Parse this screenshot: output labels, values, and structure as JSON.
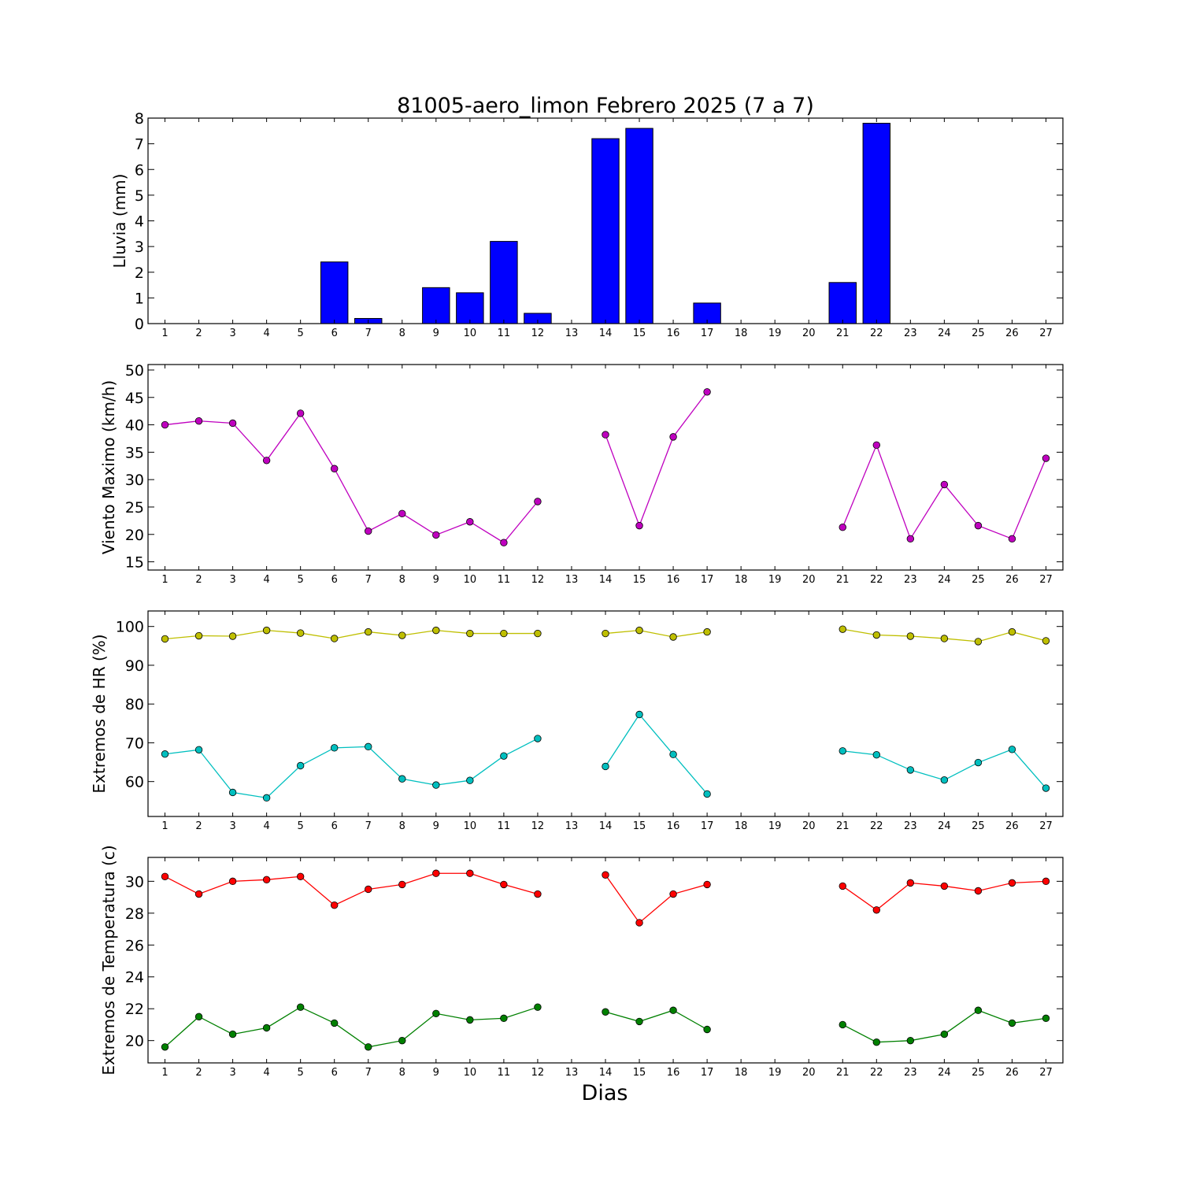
{
  "figure": {
    "title": "81005-aero_limon Febrero 2025  (7 a 7)",
    "xlabel": "Dias"
  },
  "colors": {
    "rain_bar": "#0000ff",
    "wind": "#bf00bf",
    "hr_max": "#bfbf00",
    "hr_min": "#00bfbf",
    "temp_max": "#ff0000",
    "temp_min": "#008000"
  },
  "chart_data": [
    {
      "type": "bar",
      "ylabel": "Lluvia (mm)",
      "xlabel": "",
      "x": [
        1,
        2,
        3,
        4,
        5,
        6,
        7,
        8,
        9,
        10,
        11,
        12,
        13,
        14,
        15,
        16,
        17,
        18,
        19,
        20,
        21,
        22,
        23,
        24,
        25,
        26,
        27
      ],
      "xlim": [
        0.5,
        27.5
      ],
      "ylim": [
        0,
        8
      ],
      "yticks": [
        0,
        1,
        2,
        3,
        4,
        5,
        6,
        7,
        8
      ],
      "series": [
        {
          "color_key": "rain_bar",
          "values": [
            0,
            0,
            0,
            0,
            0,
            2.4,
            0.2,
            0,
            1.4,
            1.2,
            3.2,
            0.4,
            0,
            7.2,
            7.6,
            0,
            0.8,
            0,
            0,
            0,
            1.6,
            7.8,
            0,
            0,
            0,
            0,
            0
          ]
        }
      ]
    },
    {
      "type": "line",
      "ylabel": "Viento Maximo (km/h)",
      "xlabel": "",
      "x": [
        1,
        2,
        3,
        4,
        5,
        6,
        7,
        8,
        9,
        10,
        11,
        12,
        13,
        14,
        15,
        16,
        17,
        18,
        19,
        20,
        21,
        22,
        23,
        24,
        25,
        26,
        27
      ],
      "xlim": [
        0.5,
        27.5
      ],
      "ylim": [
        13.5,
        51
      ],
      "yticks": [
        15,
        20,
        25,
        30,
        35,
        40,
        45,
        50
      ],
      "series": [
        {
          "color_key": "wind",
          "values": [
            40,
            40.7,
            40.3,
            33.5,
            42.1,
            32,
            20.6,
            23.8,
            19.9,
            22.3,
            18.5,
            26,
            null,
            38.2,
            21.6,
            37.8,
            46,
            null,
            null,
            null,
            21.3,
            36.3,
            19.2,
            29.1,
            21.6,
            19.2,
            33.9
          ]
        }
      ]
    },
    {
      "type": "line",
      "ylabel": "Extremos de HR (%)",
      "xlabel": "",
      "x": [
        1,
        2,
        3,
        4,
        5,
        6,
        7,
        8,
        9,
        10,
        11,
        12,
        13,
        14,
        15,
        16,
        17,
        18,
        19,
        20,
        21,
        22,
        23,
        24,
        25,
        26,
        27
      ],
      "xlim": [
        0.5,
        27.5
      ],
      "ylim": [
        51,
        104
      ],
      "yticks": [
        60,
        70,
        80,
        90,
        100
      ],
      "series": [
        {
          "color_key": "hr_max",
          "values": [
            96.8,
            97.6,
            97.5,
            99,
            98.3,
            96.9,
            98.6,
            97.7,
            99,
            98.2,
            98.2,
            98.2,
            null,
            98.2,
            99,
            97.3,
            98.6,
            null,
            null,
            null,
            99.3,
            97.8,
            97.5,
            96.9,
            96.1,
            98.6,
            96.3
          ]
        },
        {
          "color_key": "hr_min",
          "values": [
            67.1,
            68.2,
            57.2,
            55.8,
            64.1,
            68.7,
            69,
            60.7,
            59.1,
            60.3,
            66.6,
            71.1,
            null,
            63.9,
            77.3,
            67,
            56.8,
            null,
            null,
            null,
            67.9,
            66.9,
            63,
            60.4,
            64.9,
            68.3,
            58.3
          ]
        }
      ]
    },
    {
      "type": "line",
      "ylabel": "Extremos de Temperatura (c)",
      "xlabel": "Dias",
      "x": [
        1,
        2,
        3,
        4,
        5,
        6,
        7,
        8,
        9,
        10,
        11,
        12,
        13,
        14,
        15,
        16,
        17,
        18,
        19,
        20,
        21,
        22,
        23,
        24,
        25,
        26,
        27
      ],
      "xlim": [
        0.5,
        27.5
      ],
      "ylim": [
        18.6,
        31.5
      ],
      "yticks": [
        20,
        22,
        24,
        26,
        28,
        30
      ],
      "series": [
        {
          "color_key": "temp_max",
          "values": [
            30.3,
            29.2,
            30,
            30.1,
            30.3,
            28.5,
            29.5,
            29.8,
            30.5,
            30.5,
            29.8,
            29.2,
            null,
            30.4,
            27.4,
            29.2,
            29.8,
            null,
            null,
            null,
            29.7,
            28.2,
            29.9,
            29.7,
            29.4,
            29.9,
            30
          ]
        },
        {
          "color_key": "temp_min",
          "values": [
            19.6,
            21.5,
            20.4,
            20.8,
            22.1,
            21.1,
            19.6,
            20,
            21.7,
            21.3,
            21.4,
            22.1,
            null,
            21.8,
            21.2,
            21.9,
            20.7,
            null,
            null,
            null,
            21,
            19.9,
            20,
            20.4,
            21.9,
            21.1,
            21.4
          ]
        }
      ]
    }
  ]
}
